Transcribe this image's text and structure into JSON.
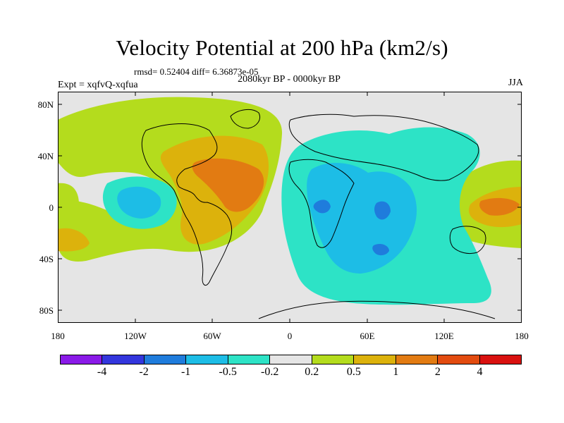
{
  "title": "Velocity Potential at 200 hPa (km2/s)",
  "stats": "rmsd= 0.52404 diff= 6.36873e-05",
  "experiment": "Expt = xqfvQ-xqfua",
  "period": "2080kyr BP - 0000kyr BP",
  "season": "JJA",
  "y_ticks": [
    "80N",
    "40N",
    "0",
    "40S",
    "80S"
  ],
  "x_ticks": [
    "180",
    "120W",
    "60W",
    "0",
    "60E",
    "120E",
    "180"
  ],
  "colorbar": {
    "labels": [
      "-4",
      "-2",
      "-1",
      "-0.5",
      "-0.2",
      "0.2",
      "0.5",
      "1",
      "2",
      "4"
    ],
    "colors": [
      "#8a1ae8",
      "#3336dd",
      "#1f7cdc",
      "#1dbde6",
      "#2de3c6",
      "#e5e5e5",
      "#b4dc1d",
      "#dcb20c",
      "#e27b12",
      "#e24b0f",
      "#d9110f"
    ]
  },
  "chart_data": {
    "type": "heatmap",
    "variable": "Velocity Potential at 200 hPa",
    "units": "km2/s",
    "xlim": [
      -180,
      180
    ],
    "ylim": [
      -90,
      90
    ],
    "levels": [
      -4,
      -2,
      -1,
      -0.5,
      -0.2,
      0.2,
      0.5,
      1,
      2,
      4
    ]
  }
}
